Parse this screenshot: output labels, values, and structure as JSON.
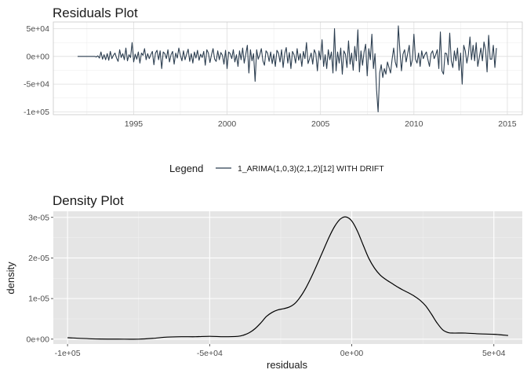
{
  "chart_data": [
    {
      "type": "line",
      "title": "Residuals Plot",
      "xlabel": "",
      "ylabel": "",
      "xlim": [
        1990.7,
        2015.8
      ],
      "ylim": [
        -105000,
        62000
      ],
      "x_ticks": [
        1995,
        2000,
        2005,
        2010,
        2015
      ],
      "x_tick_labels": [
        "1995",
        "2000",
        "2005",
        "2010",
        "2015"
      ],
      "y_ticks": [
        50000,
        0,
        -50000,
        -100000
      ],
      "y_tick_labels": [
        "5e+04",
        "0e+00",
        "-5e+04",
        "-1e+05"
      ],
      "grid": true,
      "theme": "light",
      "series_color": "#2c3e50",
      "series": [
        {
          "name": "1_ARIMA(1,0,3)(2,1,2)[12] WITH DRIFT",
          "x_start": 1992.0,
          "x_step": 0.08333,
          "values": [
            0,
            0,
            0,
            0,
            0,
            0,
            0,
            0,
            0,
            0,
            0,
            0,
            -1000,
            1000,
            -3000,
            8000,
            -5000,
            3000,
            -6000,
            5000,
            -7000,
            9000,
            -4000,
            2000,
            6000,
            -3000,
            -9000,
            12000,
            -2000,
            5000,
            -6000,
            15000,
            -8000,
            3000,
            -2000,
            25000,
            -10000,
            4000,
            -5000,
            8000,
            -12000,
            6000,
            2000,
            14000,
            -6000,
            5000,
            -4000,
            3000,
            9000,
            -15000,
            6000,
            11000,
            -6000,
            10000,
            -22000,
            8000,
            5000,
            -4000,
            12000,
            -10000,
            3000,
            9000,
            -14000,
            6000,
            -3000,
            15000,
            2000,
            -8000,
            10000,
            -6000,
            4000,
            13000,
            -9000,
            5000,
            -12000,
            8000,
            -3000,
            11000,
            -7000,
            4000,
            -2000,
            9000,
            -16000,
            12000,
            6000,
            -11000,
            3000,
            14000,
            -5000,
            -9000,
            10000,
            -6000,
            7000,
            2000,
            -14000,
            11000,
            -22000,
            8000,
            5000,
            -4000,
            12000,
            -10000,
            3000,
            -18000,
            10000,
            -6000,
            15000,
            -12000,
            4000,
            20000,
            -30000,
            12000,
            -8000,
            5000,
            -45000,
            12000,
            -5000,
            3000,
            14000,
            -8000,
            -16000,
            10000,
            6000,
            -9000,
            8000,
            -13000,
            4000,
            -18000,
            11000,
            6000,
            -10000,
            12000,
            -20000,
            5000,
            16000,
            -12000,
            7000,
            -22000,
            9000,
            3000,
            -12000,
            14000,
            -7000,
            5000,
            -18000,
            9000,
            -4000,
            25000,
            -13000,
            -4000,
            6000,
            -14000,
            12000,
            5000,
            -26000,
            10000,
            -6000,
            30000,
            -18000,
            3000,
            -22000,
            12000,
            -6000,
            8000,
            -30000,
            50000,
            -26000,
            8000,
            -12000,
            15000,
            -32000,
            10000,
            4000,
            -20000,
            28000,
            -14000,
            6000,
            -25000,
            18000,
            -8000,
            48000,
            -28000,
            10000,
            -16000,
            8000,
            22000,
            -35000,
            14000,
            -6000,
            40000,
            -22000,
            5000,
            -60000,
            -100000,
            -30000,
            -15000,
            -38000,
            -22000,
            -32000,
            -10000,
            -20000,
            -30000,
            -5000,
            15000,
            -10000,
            -20000,
            55000,
            10000,
            -26000,
            4000,
            12000,
            -10000,
            5000,
            20000,
            -18000,
            -6000,
            40000,
            -5000,
            -12000,
            6000,
            -18000,
            10000,
            -4000,
            3000,
            8000,
            -6000,
            -18000,
            5000,
            10000,
            -4000,
            3000,
            12000,
            -22000,
            44000,
            -26000,
            -32000,
            6000,
            5000,
            -15000,
            42000,
            -8000,
            -20000,
            10000,
            -8000,
            15000,
            -25000,
            6000,
            -50000,
            20000,
            10000,
            -12000,
            4000,
            35000,
            -6000,
            20000,
            -8000,
            25000,
            -18000,
            -2000,
            15000,
            -8000,
            26000,
            12000,
            -28000,
            38000,
            -5000,
            -5000,
            20000,
            -20000,
            15000
          ]
        }
      ]
    },
    {
      "type": "area",
      "title": "Density Plot",
      "xlabel": "residuals",
      "ylabel": "density",
      "xlim": [
        -105000,
        60000
      ],
      "ylim": [
        -1.2e-06,
        3.15e-05
      ],
      "x_ticks": [
        -100000,
        -50000,
        0,
        50000
      ],
      "x_tick_labels": [
        "-1e+05",
        "-5e+04",
        "0e+00",
        "5e+04"
      ],
      "y_ticks": [
        0,
        1e-05,
        2e-05,
        3e-05
      ],
      "y_tick_labels": [
        "0e+00",
        "1e-05",
        "2e-05",
        "3e-05"
      ],
      "grid": true,
      "theme": "grey",
      "series_color": "#000000",
      "series": [
        {
          "name": "density",
          "x": [
            -100000,
            -90000,
            -80000,
            -75000,
            -70000,
            -65000,
            -60000,
            -55000,
            -50000,
            -45000,
            -40000,
            -38000,
            -36000,
            -34000,
            -32000,
            -30000,
            -28000,
            -26000,
            -24000,
            -22000,
            -20000,
            -18000,
            -16000,
            -14000,
            -12000,
            -10000,
            -8000,
            -6000,
            -4000,
            -2000,
            0,
            2000,
            4000,
            6000,
            8000,
            10000,
            12000,
            14000,
            16000,
            18000,
            20000,
            22000,
            24000,
            26000,
            28000,
            30000,
            32000,
            34000,
            36000,
            40000,
            45000,
            50000,
            55000
          ],
          "y": [
            3.5e-07,
            5e-08,
            0.0,
            0.0,
            2e-07,
            5e-07,
            6e-07,
            6e-07,
            7e-07,
            6e-07,
            7e-07,
            1e-06,
            1.6e-06,
            2.6e-06,
            4e-06,
            5.6e-06,
            6.6e-06,
            7.2e-06,
            7.5e-06,
            7.9e-06,
            8.8e-06,
            1.05e-05,
            1.28e-05,
            1.56e-05,
            1.87e-05,
            2.19e-05,
            2.51e-05,
            2.78e-05,
            2.96e-05,
            3.01e-05,
            2.91e-05,
            2.66e-05,
            2.32e-05,
            1.99e-05,
            1.75e-05,
            1.58e-05,
            1.47e-05,
            1.38e-05,
            1.29e-05,
            1.21e-05,
            1.14e-05,
            1.06e-05,
            9.6e-06,
            8.2e-06,
            6.2e-06,
            4e-06,
            2.3e-06,
            1.6e-06,
            1.5e-06,
            1.5e-06,
            1.3e-06,
            1.2e-06,
            9e-07
          ]
        }
      ]
    }
  ],
  "legend": {
    "title": "Legend",
    "label": "1_ARIMA(1,0,3)(2,1,2)[12] WITH DRIFT"
  }
}
